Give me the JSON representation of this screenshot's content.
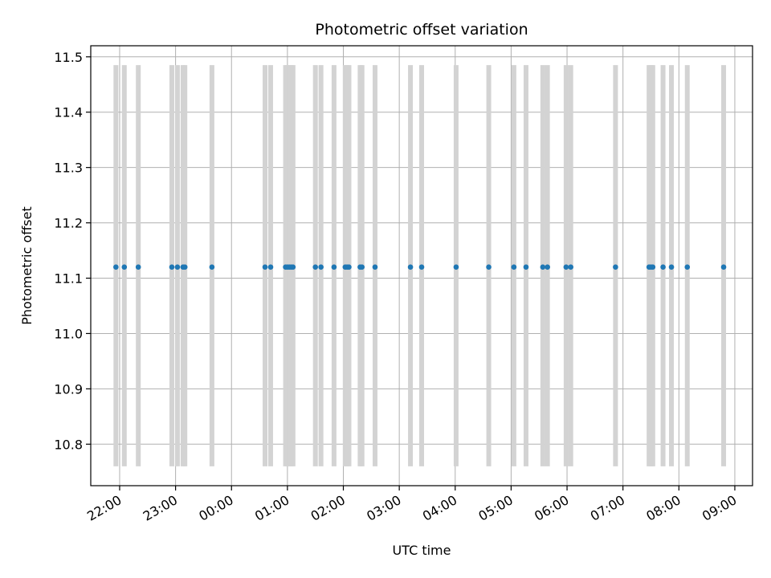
{
  "chart_data": {
    "type": "scatter",
    "title": "Photometric offset variation",
    "xlabel": "UTC time",
    "ylabel": "Photometric offset",
    "x_ticks": [
      "22:00",
      "23:00",
      "00:00",
      "01:00",
      "02:00",
      "03:00",
      "04:00",
      "05:00",
      "06:00",
      "07:00",
      "08:00",
      "09:00"
    ],
    "y_ticks": [
      "10.8",
      "10.9",
      "11.0",
      "11.1",
      "11.2",
      "11.3",
      "11.4",
      "11.5"
    ],
    "xlim": [
      "21:29",
      "09:19"
    ],
    "ylim": [
      10.725,
      11.52
    ],
    "grid": true,
    "span_y": [
      10.76,
      11.485
    ],
    "series": [
      {
        "marker_color": "#1f77b4",
        "span_color": "#d3d3d3",
        "x": [
          "21:56",
          "22:05",
          "22:20",
          "22:56",
          "23:02",
          "23:08",
          "23:10",
          "23:39",
          "00:36",
          "00:42",
          "00:58",
          "01:00",
          "01:02",
          "01:04",
          "01:06",
          "01:30",
          "01:36",
          "01:50",
          "02:02",
          "02:04",
          "02:06",
          "02:18",
          "02:20",
          "02:34",
          "03:12",
          "03:24",
          "04:01",
          "04:36",
          "05:03",
          "05:16",
          "05:34",
          "05:39",
          "05:59",
          "06:04",
          "06:52",
          "07:28",
          "07:30",
          "07:32",
          "07:43",
          "07:52",
          "08:09",
          "08:48"
        ],
        "y": [
          11.12,
          11.12,
          11.12,
          11.12,
          11.12,
          11.12,
          11.12,
          11.12,
          11.12,
          11.12,
          11.12,
          11.12,
          11.12,
          11.12,
          11.12,
          11.12,
          11.12,
          11.12,
          11.12,
          11.12,
          11.12,
          11.12,
          11.12,
          11.12,
          11.12,
          11.12,
          11.12,
          11.12,
          11.12,
          11.12,
          11.12,
          11.12,
          11.12,
          11.12,
          11.12,
          11.12,
          11.12,
          11.12,
          11.12,
          11.12,
          11.12,
          11.12
        ]
      }
    ]
  }
}
